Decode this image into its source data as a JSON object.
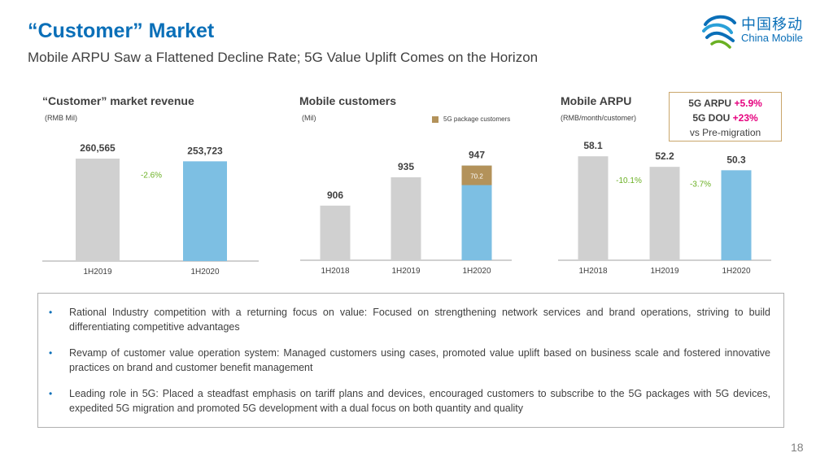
{
  "header": {
    "title": "“Customer” Market",
    "subtitle": "Mobile ARPU Saw a Flattened Decline Rate; 5G Value Uplift Comes on the Horizon"
  },
  "logo": {
    "cn": "中国移动",
    "en": "China Mobile"
  },
  "colors": {
    "grey": "#d0d0d0",
    "blue": "#7dbfe3",
    "gold": "#b3925a",
    "green": "#6ab023",
    "title_blue": "#0a6fb8",
    "pink": "#e6007e"
  },
  "chart_data": [
    {
      "type": "bar",
      "title": "“Customer” market revenue",
      "unit": "(RMB Mil)",
      "categories": [
        "1H2019",
        "1H2020"
      ],
      "values": [
        260565,
        253723
      ],
      "value_labels": [
        "260,565",
        "253,723"
      ],
      "changes": [
        {
          "label": "-2.6%",
          "between": [
            0,
            1
          ]
        }
      ],
      "ylim": [
        0,
        300000
      ]
    },
    {
      "type": "bar",
      "title": "Mobile customers",
      "unit": "(Mil)",
      "categories": [
        "1H2018",
        "1H2019",
        "1H2020"
      ],
      "values": [
        906,
        935,
        947
      ],
      "value_labels": [
        "906",
        "935",
        "947"
      ],
      "subsegment": {
        "name": "5G package customers",
        "category_index": 2,
        "value": 70.2,
        "label": "70.2"
      },
      "ylim": [
        850,
        955
      ]
    },
    {
      "type": "bar",
      "title": "Mobile ARPU",
      "unit": "(RMB/month/customer)",
      "categories": [
        "1H2018",
        "1H2019",
        "1H2020"
      ],
      "values": [
        58.1,
        52.2,
        50.3
      ],
      "value_labels": [
        "58.1",
        "52.2",
        "50.3"
      ],
      "changes": [
        {
          "label": "-10.1%",
          "between": [
            0,
            1
          ]
        },
        {
          "label": "-3.7%",
          "between": [
            1,
            2
          ]
        }
      ],
      "ylim": [
        0,
        70
      ]
    }
  ],
  "arpu_box": {
    "line1_prefix": "5G ARPU ",
    "line1_value": "+5.9%",
    "line2_prefix": "5G DOU ",
    "line2_value": "+23%",
    "line3": "vs Pre-migration"
  },
  "bullets": [
    "Rational Industry competition with a returning focus on value: Focused on strengthening network services and brand operations, striving to build differentiating competitive advantages",
    "Revamp of customer value operation system: Managed customers using cases, promoted value uplift based on business scale and fostered innovative practices on brand and customer benefit management",
    "Leading role in 5G: Placed a steadfast emphasis on tariff plans and devices, encouraged customers to subscribe to the 5G packages with 5G devices, expedited 5G migration and promoted 5G development with a dual focus on both quantity and quality"
  ],
  "page_number": "18"
}
